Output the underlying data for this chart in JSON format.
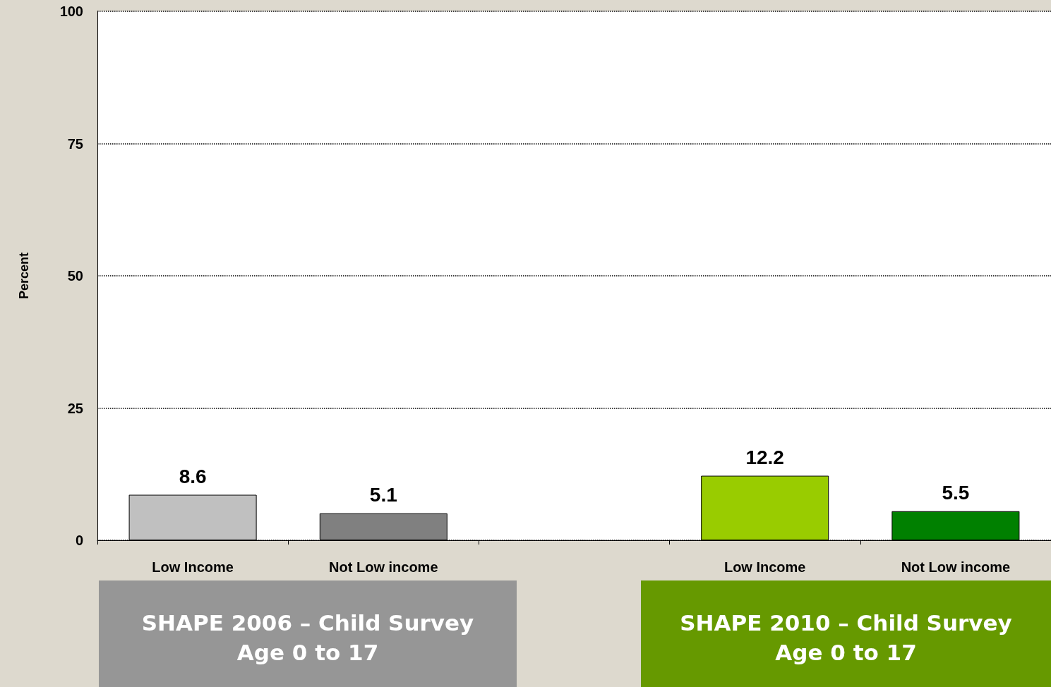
{
  "chart_data": {
    "type": "bar",
    "ylabel": "Percent",
    "categories": [
      "Low Income",
      "Not Low income",
      null,
      "Low Income",
      "Not Low income"
    ],
    "values": [
      8.6,
      5.1,
      null,
      12.2,
      5.5
    ],
    "colors": [
      "#c0c0c0",
      "#808080",
      "#ffffff",
      "#99cc00",
      "#008000"
    ],
    "ylim": [
      0,
      100
    ],
    "yticks": [
      0,
      25,
      50,
      75,
      100
    ],
    "grid": "y",
    "data_labels": true,
    "annotations": [
      "SHAPE 2006 – Child Survey\nAge 0 to 17",
      "SHAPE 2010 – Child Survey\nAge 0 to 17"
    ]
  }
}
